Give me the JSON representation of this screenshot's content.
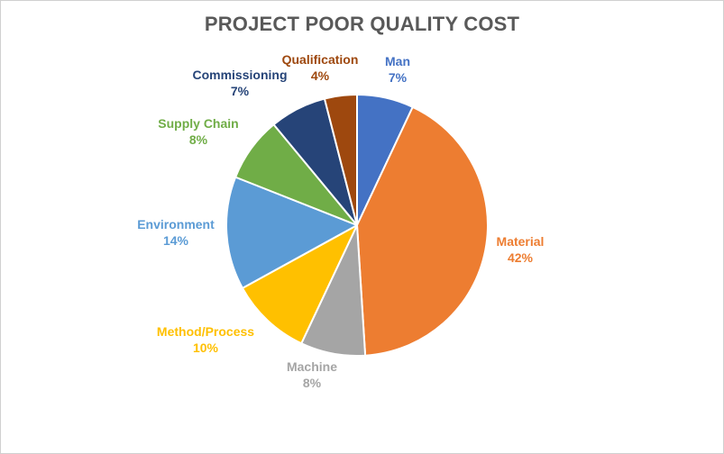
{
  "chart_data": {
    "type": "pie",
    "title": "PROJECT POOR QUALITY COST",
    "slices": [
      {
        "label": "Man",
        "value": 7,
        "pct_label": "7%",
        "color": "#4472C4"
      },
      {
        "label": "Material",
        "value": 42,
        "pct_label": "42%",
        "color": "#ED7D31"
      },
      {
        "label": "Machine",
        "value": 8,
        "pct_label": "8%",
        "color": "#A5A5A5"
      },
      {
        "label": "Method/Process",
        "value": 10,
        "pct_label": "10%",
        "color": "#FFC000"
      },
      {
        "label": "Environment",
        "value": 14,
        "pct_label": "14%",
        "color": "#5B9BD5"
      },
      {
        "label": "Supply Chain",
        "value": 8,
        "pct_label": "8%",
        "color": "#70AD47"
      },
      {
        "label": "Commissioning",
        "value": 7,
        "pct_label": "7%",
        "color": "#264478"
      },
      {
        "label": "Qualification",
        "value": 4,
        "pct_label": "4%",
        "color": "#9E480E"
      }
    ],
    "start_angle": "12 o'clock",
    "direction": "clockwise",
    "legend": "none (data labels outside slices)"
  }
}
